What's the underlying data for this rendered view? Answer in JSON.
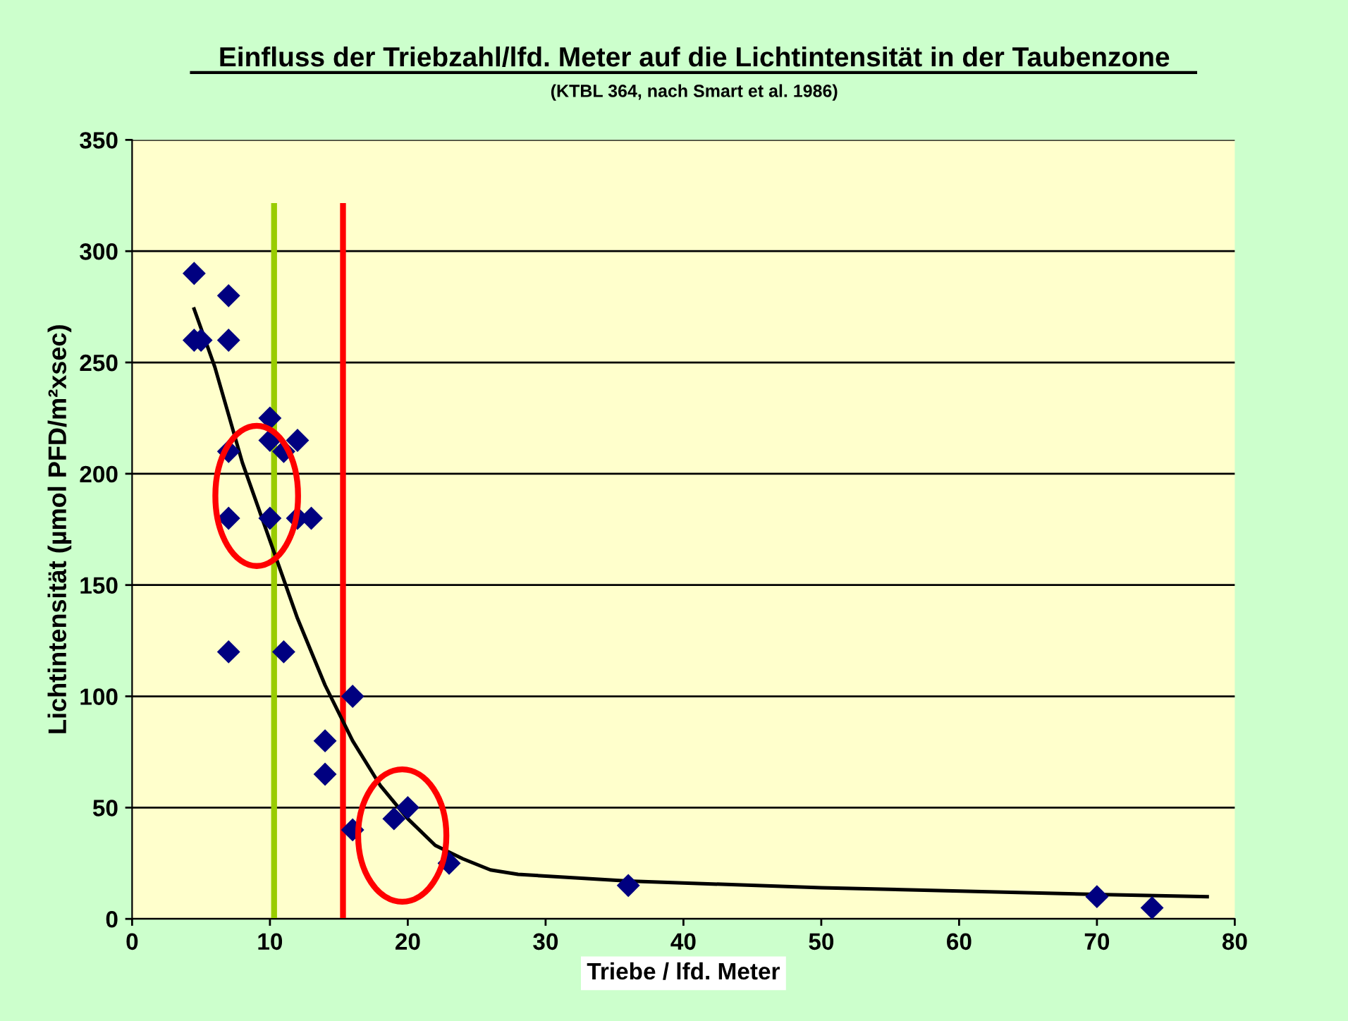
{
  "chart_data": {
    "type": "scatter",
    "title": "Einfluss der Triebzahl/lfd. Meter auf die Lichtintensität in der Taubenzone",
    "subtitle": "(KTBL 364, nach Smart et al. 1986)",
    "xlabel": "Triebe / lfd. Meter",
    "ylabel": "Lichtintensität (µmol PFD/m²xsec)",
    "xlim": [
      0,
      80
    ],
    "xticks": [
      0,
      10,
      20,
      30,
      40,
      50,
      60,
      70,
      80
    ],
    "ylim": [
      0,
      350
    ],
    "yticks": [
      0,
      50,
      100,
      150,
      200,
      250,
      300,
      350
    ],
    "grid": "y",
    "legend": false,
    "marker": "diamond",
    "series": [
      {
        "color": "#000080",
        "x": [
          4.5,
          7,
          4.5,
          5,
          7,
          10,
          10,
          12,
          11,
          7,
          7,
          10,
          12,
          13,
          7,
          11,
          16,
          14,
          14,
          19,
          20,
          16,
          23,
          36,
          70,
          74
        ],
        "values": [
          290,
          280,
          260,
          260,
          260,
          225,
          215,
          215,
          210,
          210,
          180,
          180,
          180,
          180,
          120,
          120,
          100,
          80,
          65,
          45,
          50,
          40,
          25,
          15,
          10,
          5
        ]
      },
      {
        "type": "line",
        "color": "#000000",
        "marker": "none",
        "x": [
          4.5,
          6,
          8,
          10,
          12,
          14,
          16,
          18,
          20,
          22,
          24,
          26,
          28,
          36,
          50,
          70,
          78
        ],
        "values": [
          274,
          248,
          205,
          170,
          135,
          105,
          80,
          60,
          45,
          33,
          27,
          22,
          20,
          17,
          14,
          11,
          10
        ]
      }
    ],
    "ref_lines": [
      {
        "axis": "x",
        "value": 10.3,
        "color": "#99cc00"
      },
      {
        "axis": "x",
        "value": 15.3,
        "color": "#ff0000"
      }
    ]
  }
}
